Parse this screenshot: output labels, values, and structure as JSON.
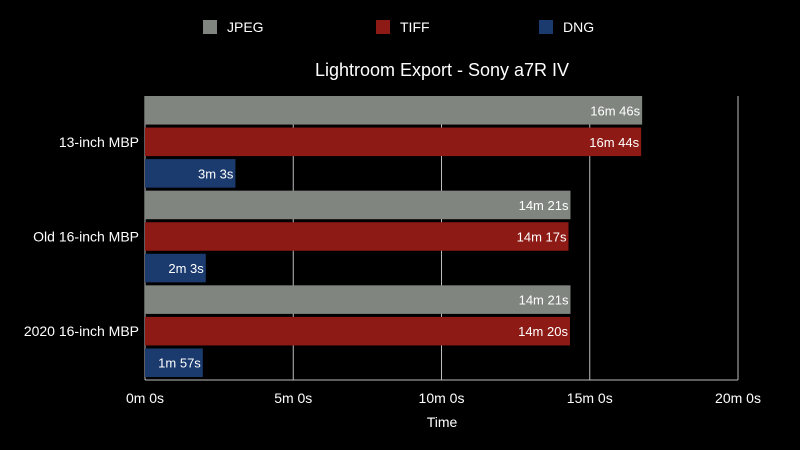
{
  "chart_data": {
    "type": "bar",
    "orientation": "horizontal",
    "title": "Lightroom Export - Sony a7R IV",
    "xlabel": "Time",
    "ylabel": "",
    "xlim": [
      0,
      1200
    ],
    "x_unit": "seconds",
    "xticks": [
      0,
      300,
      600,
      900,
      1200
    ],
    "xtick_labels": [
      "0m 0s",
      "5m 0s",
      "10m 0s",
      "15m 0s",
      "20m 0s"
    ],
    "grid": "vertical",
    "legend_position": "top",
    "categories": [
      "13-inch MBP",
      "Old 16-inch MBP",
      "2020 16-inch MBP"
    ],
    "series": [
      {
        "name": "JPEG",
        "color": "#808580",
        "values": [
          1006,
          861,
          861
        ],
        "labels": [
          "16m 46s",
          "14m 21s",
          "14m 21s"
        ]
      },
      {
        "name": "TIFF",
        "color": "#8e1a15",
        "values": [
          1004,
          857,
          860
        ],
        "labels": [
          "16m 44s",
          "14m 17s",
          "14m 20s"
        ]
      },
      {
        "name": "DNG",
        "color": "#1b3a6e",
        "values": [
          183,
          123,
          117
        ],
        "labels": [
          "3m 3s",
          "2m 3s",
          "1m 57s"
        ]
      }
    ]
  }
}
